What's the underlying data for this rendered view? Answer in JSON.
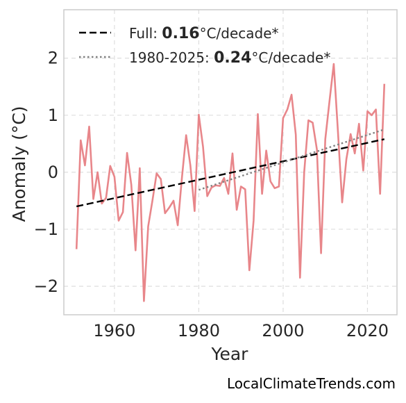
{
  "chart_data": {
    "type": "line",
    "xlabel": "Year",
    "ylabel": "Anomaly (°C)",
    "xlim": [
      1948,
      2027
    ],
    "ylim": [
      -2.5,
      2.85
    ],
    "x_ticks": [
      1960,
      1980,
      2000,
      2020
    ],
    "x_tick_labels": [
      "1960",
      "1980",
      "2000",
      "2020"
    ],
    "y_ticks": [
      -2,
      -1,
      0,
      1,
      2
    ],
    "y_tick_labels": [
      "−2",
      "−1",
      "0",
      "1",
      "2"
    ],
    "grid": true,
    "legend_position": "top-left",
    "series": [
      {
        "style": "solid",
        "color": "#e8868a",
        "x": [
          1951,
          1952,
          1953,
          1954,
          1955,
          1956,
          1957,
          1958,
          1959,
          1960,
          1961,
          1962,
          1963,
          1964,
          1965,
          1966,
          1967,
          1968,
          1969,
          1970,
          1971,
          1972,
          1973,
          1974,
          1975,
          1976,
          1977,
          1978,
          1979,
          1980,
          1981,
          1982,
          1983,
          1984,
          1985,
          1986,
          1987,
          1988,
          1989,
          1990,
          1991,
          1992,
          1993,
          1994,
          1995,
          1996,
          1997,
          1998,
          1999,
          2000,
          2001,
          2002,
          2003,
          2004,
          2005,
          2006,
          2007,
          2008,
          2009,
          2010,
          2011,
          2012,
          2013,
          2014,
          2015,
          2016,
          2017,
          2018,
          2019,
          2020,
          2021,
          2022,
          2023,
          2024
        ],
        "y": [
          -1.35,
          0.56,
          0.12,
          0.8,
          -0.47,
          0.0,
          -0.55,
          -0.45,
          0.11,
          -0.08,
          -0.85,
          -0.7,
          0.34,
          -0.22,
          -1.37,
          0.07,
          -2.26,
          -0.95,
          -0.5,
          -0.02,
          -0.12,
          -0.72,
          -0.62,
          -0.5,
          -0.93,
          -0.1,
          0.65,
          0.12,
          -0.68,
          1.01,
          0.45,
          -0.42,
          -0.27,
          -0.23,
          -0.24,
          -0.1,
          -0.38,
          0.33,
          -0.66,
          -0.25,
          -0.3,
          -1.72,
          -0.85,
          1.02,
          -0.38,
          0.38,
          -0.16,
          -0.28,
          -0.25,
          0.95,
          1.1,
          1.36,
          0.66,
          -1.85,
          0.0,
          0.91,
          0.87,
          0.4,
          -1.42,
          0.58,
          1.25,
          1.9,
          0.72,
          -0.53,
          0.23,
          0.67,
          0.33,
          0.85,
          0.03,
          1.07,
          1.0,
          1.1,
          -0.38,
          1.55
        ]
      },
      {
        "name": "Full: 0.16°C/decade*",
        "style": "dashed",
        "color": "#000000",
        "x": [
          1951,
          2024
        ],
        "y": [
          -0.6,
          0.58
        ]
      },
      {
        "name": "1980-2025: 0.24°C/decade*",
        "style": "dotted",
        "color": "#808080",
        "x": [
          1980,
          2024
        ],
        "y": [
          -0.31,
          0.75
        ]
      }
    ],
    "legend": [
      {
        "prefix": "Full: ",
        "bold": "0.16",
        "suffix": "°C/decade*",
        "style": "dashed",
        "color": "#000000"
      },
      {
        "prefix": "1980-2025: ",
        "bold": "0.24",
        "suffix": "°C/decade*",
        "style": "dotted",
        "color": "#808080"
      }
    ]
  },
  "credit": "LocalClimateTrends.com"
}
